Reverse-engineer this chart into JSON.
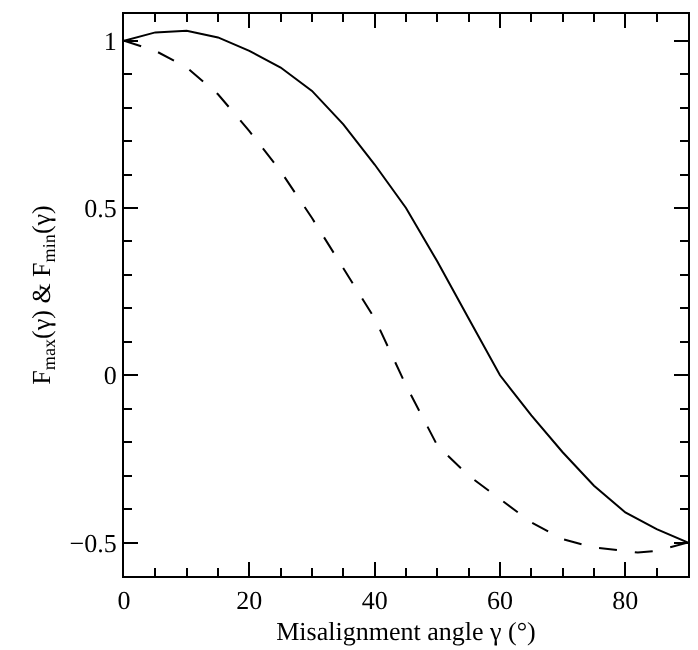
{
  "chart_data": {
    "type": "line",
    "xlabel": "Misalignment angle γ (°)",
    "ylabel": "F$_{max}$(γ) & F$_{min}$(γ)",
    "xlim": [
      0,
      90
    ],
    "ylim": [
      -0.6,
      1.08
    ],
    "xticks": [
      0,
      20,
      40,
      60,
      80
    ],
    "yticks": [
      -0.5,
      0,
      0.5,
      1
    ],
    "marker": "none",
    "series": [
      {
        "color": "#000000",
        "line_style": "solid",
        "x": [
          0,
          5,
          10,
          15,
          20,
          25,
          30,
          35,
          40,
          45,
          50,
          55,
          60,
          65,
          70,
          75,
          80,
          85,
          90
        ],
        "values": [
          1.0,
          1.025,
          1.03,
          1.01,
          0.97,
          0.92,
          0.85,
          0.75,
          0.63,
          0.5,
          0.34,
          0.17,
          0.0,
          -0.12,
          -0.23,
          -0.33,
          -0.41,
          -0.46,
          -0.5
        ]
      },
      {
        "color": "#000000",
        "line_style": "dashed",
        "x": [
          0,
          5,
          10,
          15,
          20,
          25,
          30,
          35,
          40,
          45,
          50,
          55,
          60,
          65,
          70,
          75,
          80,
          82,
          85,
          90
        ],
        "values": [
          1.0,
          0.97,
          0.92,
          0.84,
          0.73,
          0.61,
          0.47,
          0.32,
          0.17,
          -0.03,
          -0.21,
          -0.3,
          -0.37,
          -0.44,
          -0.49,
          -0.515,
          -0.525,
          -0.53,
          -0.525,
          -0.5
        ]
      }
    ]
  }
}
